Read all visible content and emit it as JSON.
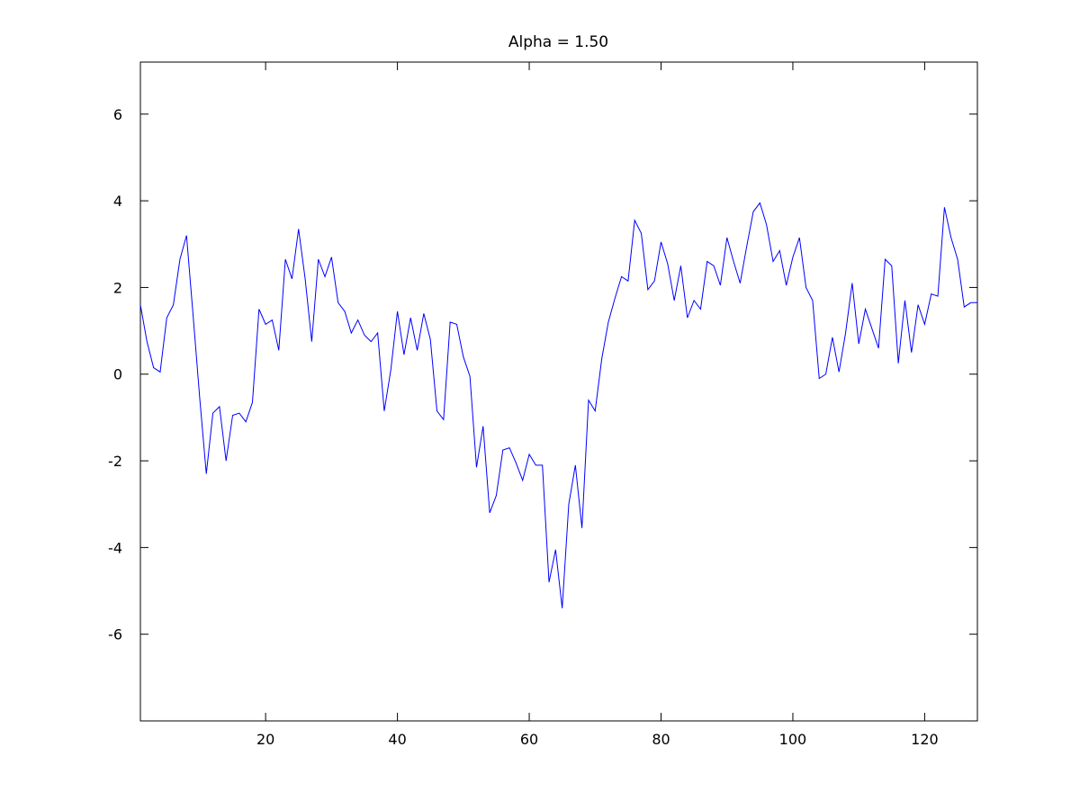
{
  "chart_data": {
    "type": "line",
    "title": "Alpha = 1.50",
    "xlabel": "",
    "ylabel": "",
    "xlim": [
      1,
      128
    ],
    "ylim": [
      -8,
      7.2
    ],
    "xticks": [
      20,
      40,
      60,
      80,
      100,
      120
    ],
    "yticks": [
      -6,
      -4,
      -2,
      0,
      2,
      4,
      6
    ],
    "grid": false,
    "line_color": "#0000ff",
    "series": [
      {
        "x": [
          1,
          2,
          3,
          4,
          5,
          6,
          7,
          8,
          9,
          10,
          11,
          12,
          13,
          14,
          15,
          16,
          17,
          18,
          19,
          20,
          21,
          22,
          23,
          24,
          25,
          26,
          27,
          28,
          29,
          30,
          31,
          32,
          33,
          34,
          35,
          36,
          37,
          38,
          39,
          40,
          41,
          42,
          43,
          44,
          45,
          46,
          47,
          48,
          49,
          50,
          51,
          52,
          53,
          54,
          55,
          56,
          57,
          58,
          59,
          60,
          61,
          62,
          63,
          64,
          65,
          66,
          67,
          68,
          69,
          70,
          71,
          72,
          73,
          74,
          75,
          76,
          77,
          78,
          79,
          80,
          81,
          82,
          83,
          84,
          85,
          86,
          87,
          88,
          89,
          90,
          91,
          92,
          93,
          94,
          95,
          96,
          97,
          98,
          99,
          100,
          101,
          102,
          103,
          104,
          105,
          106,
          107,
          108,
          109,
          110,
          111,
          112,
          113,
          114,
          115,
          116,
          117,
          118,
          119,
          120,
          121,
          122,
          123,
          124,
          125,
          126,
          127,
          128
        ],
        "values": [
          1.6,
          0.75,
          0.15,
          0.05,
          1.3,
          1.6,
          2.65,
          3.2,
          1.35,
          -0.55,
          -2.3,
          -0.9,
          -0.75,
          -2.0,
          -0.95,
          -0.9,
          -1.1,
          -0.65,
          1.5,
          1.15,
          1.25,
          0.55,
          2.65,
          2.2,
          3.35,
          2.2,
          0.75,
          2.65,
          2.25,
          2.7,
          1.65,
          1.45,
          0.95,
          1.25,
          0.9,
          0.75,
          0.95,
          -0.85,
          0.1,
          1.45,
          0.45,
          1.3,
          0.55,
          1.4,
          0.8,
          -0.85,
          -1.05,
          1.2,
          1.15,
          0.4,
          -0.05,
          -2.15,
          -1.2,
          -3.2,
          -2.8,
          -1.75,
          -1.7,
          -2.05,
          -2.45,
          -1.85,
          -2.1,
          -2.1,
          -4.8,
          -4.05,
          -5.4,
          -3.0,
          -2.1,
          -3.55,
          -0.6,
          -0.85,
          0.35,
          1.2,
          1.75,
          2.25,
          2.15,
          3.55,
          3.25,
          1.95,
          2.15,
          3.05,
          2.55,
          1.7,
          2.5,
          1.3,
          1.7,
          1.5,
          2.6,
          2.5,
          2.05,
          3.15,
          2.6,
          2.1,
          2.95,
          3.75,
          3.95,
          3.45,
          2.6,
          2.85,
          2.05,
          2.7,
          3.15,
          2.0,
          1.7,
          -0.1,
          0.0,
          0.85,
          0.05,
          0.95,
          2.1,
          0.7,
          1.5,
          1.05,
          0.6,
          2.65,
          2.5,
          0.25,
          1.7,
          0.5,
          1.6,
          1.15,
          1.85,
          1.8,
          3.85,
          3.15,
          2.65,
          1.55,
          1.65,
          1.65
        ]
      }
    ]
  }
}
